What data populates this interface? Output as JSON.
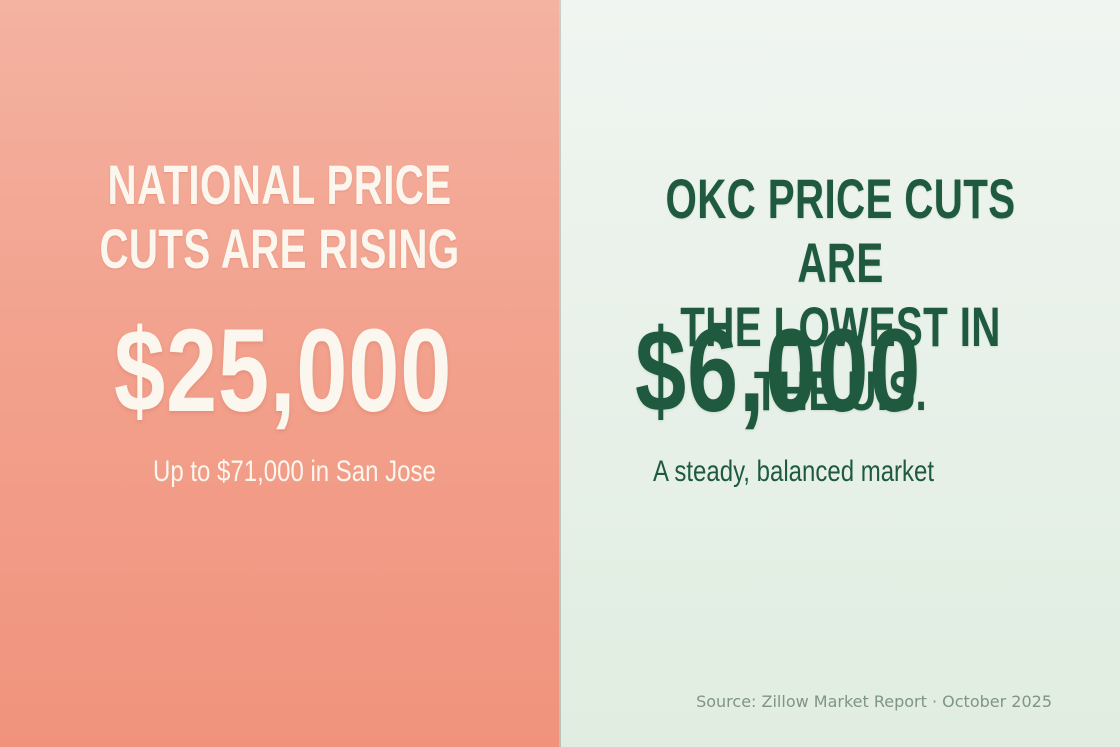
{
  "left_panel": {
    "headline": [
      "NATIONAL PRICE",
      "CUTS ARE RISING"
    ],
    "value": "$25,000",
    "subtext": "Up to $71,000 in San Jose",
    "colors": {
      "background_top": "#f4b2a1",
      "background_bottom": "#f1937c",
      "text": "#fbf6ee"
    }
  },
  "right_panel": {
    "headline": [
      "OKC PRICE CUTS ARE",
      "THE LOWEST IN THE U.S."
    ],
    "value": "$6,000",
    "subtext": "A steady, balanced market",
    "colors": {
      "background_top": "#f0f5f1",
      "background_bottom": "#e0ede0",
      "text": "#1f5a3e"
    }
  },
  "footer": {
    "source": "Source: Zillow Market Report · October 2025"
  }
}
